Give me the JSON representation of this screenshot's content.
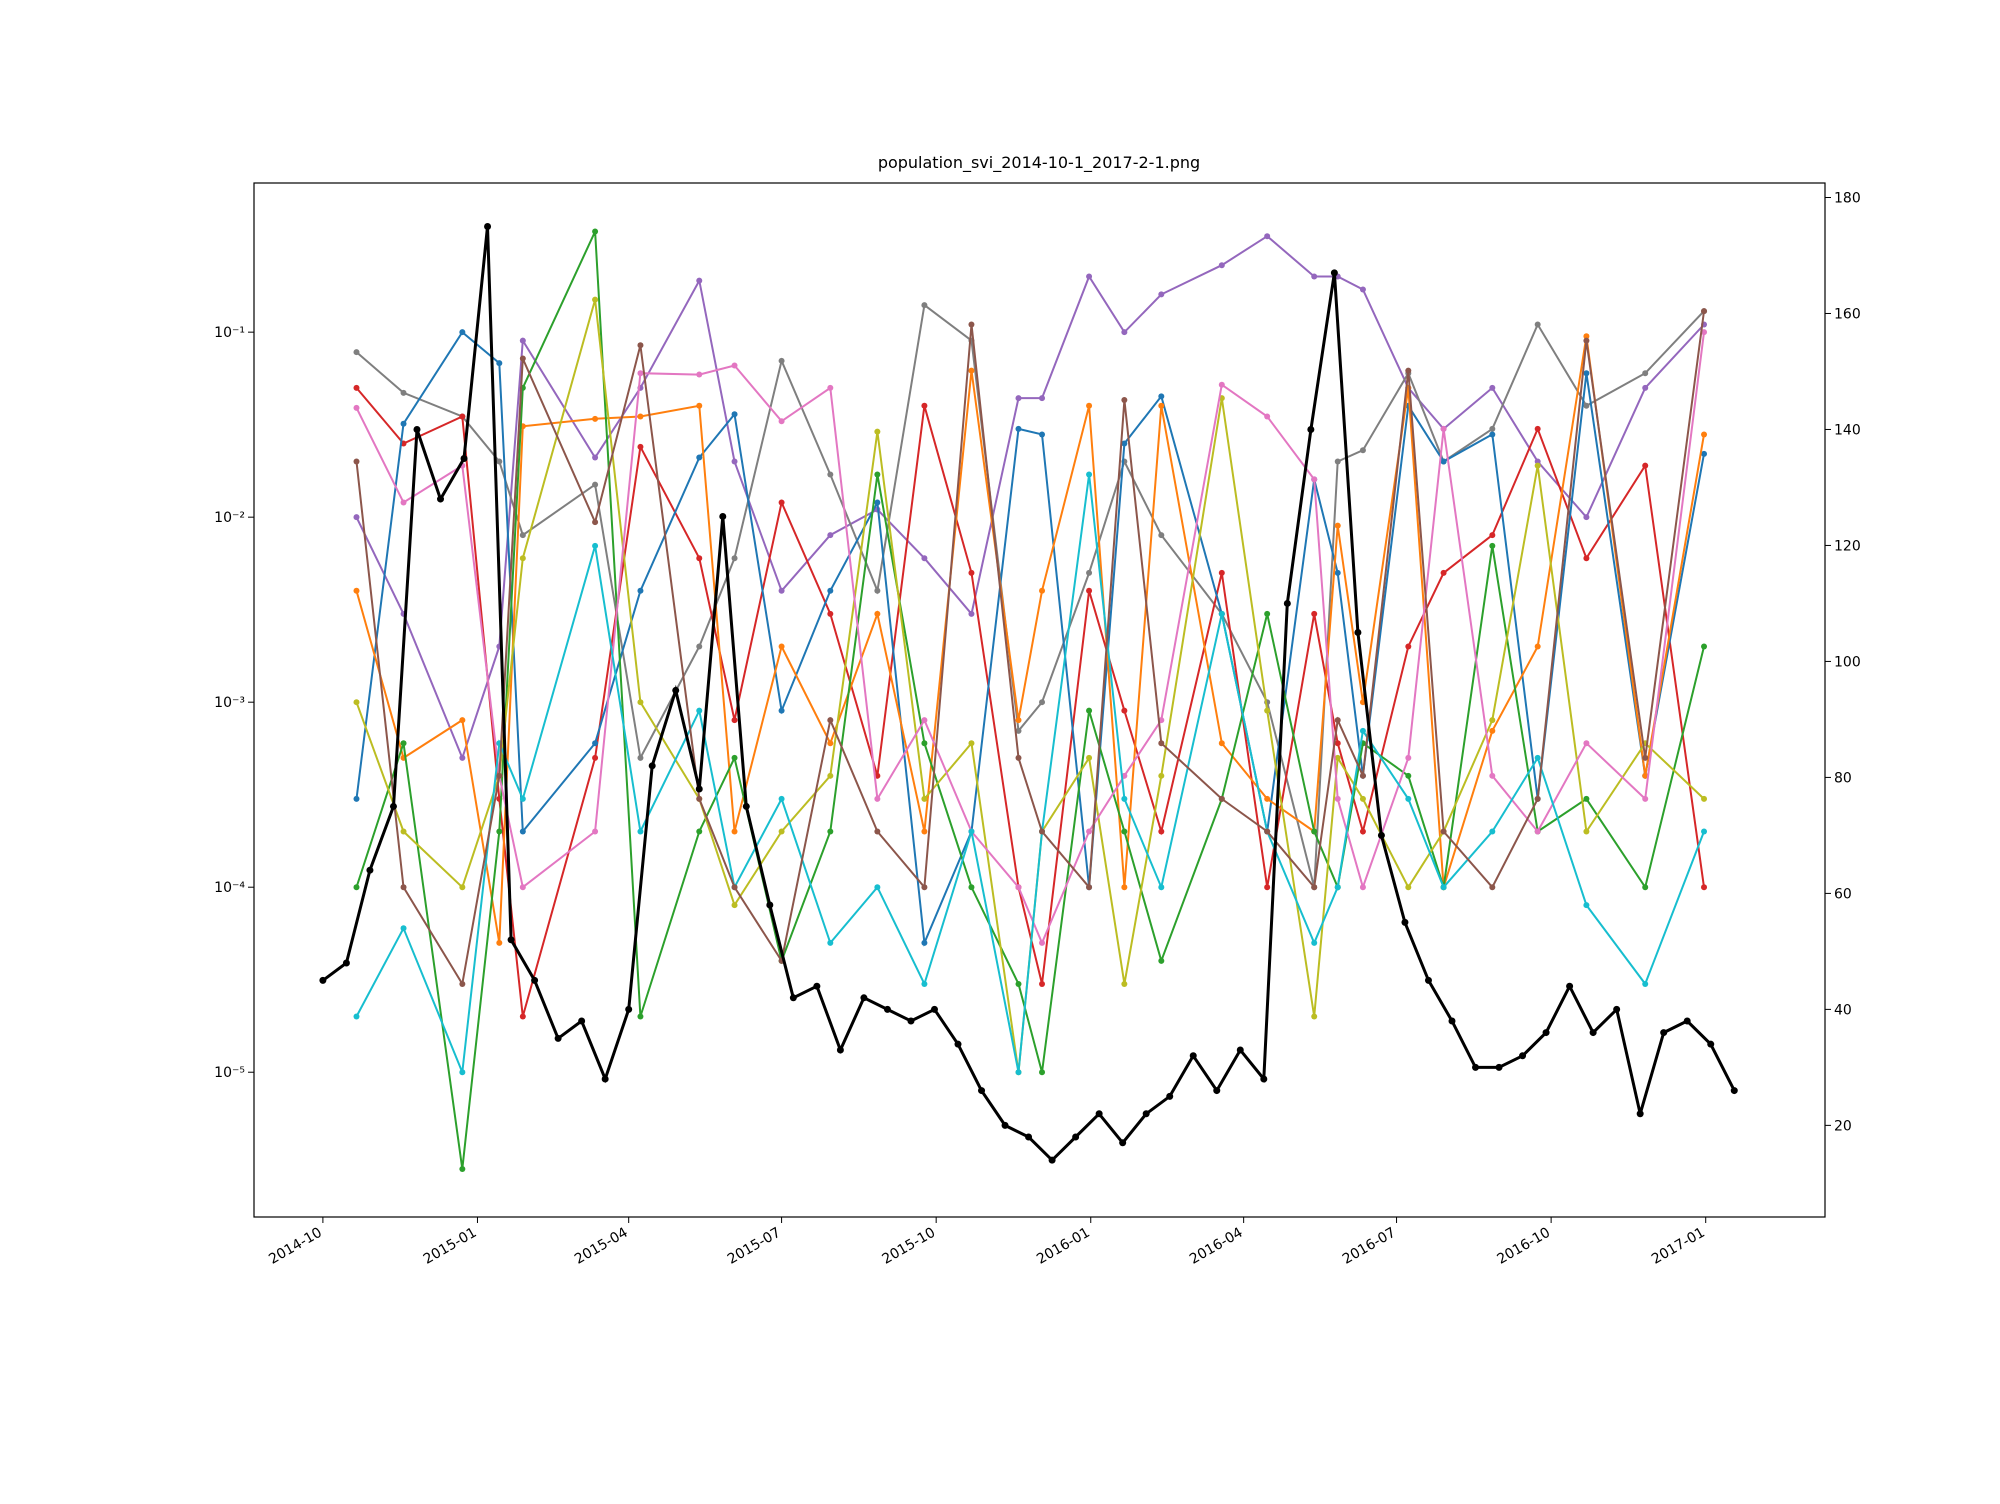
{
  "chart_data": {
    "type": "line",
    "title": "population_svi_2014-10-1_2017-2-1.png",
    "xlim": [
      "2014-08-21",
      "2017-03-13"
    ],
    "xticks": [
      {
        "value": "2014-10-01",
        "label": "2014-10"
      },
      {
        "value": "2015-01-01",
        "label": "2015-01"
      },
      {
        "value": "2015-04-01",
        "label": "2015-04"
      },
      {
        "value": "2015-07-01",
        "label": "2015-07"
      },
      {
        "value": "2015-10-01",
        "label": "2015-10"
      },
      {
        "value": "2016-01-01",
        "label": "2016-01"
      },
      {
        "value": "2016-04-01",
        "label": "2016-04"
      },
      {
        "value": "2016-07-01",
        "label": "2016-07"
      },
      {
        "value": "2016-10-01",
        "label": "2016-10"
      },
      {
        "value": "2017-01-01",
        "label": "2017-01"
      }
    ],
    "ylim": [
      1.65e-06,
      0.64
    ],
    "log_y": true,
    "yticks": [
      {
        "value": 1e-05,
        "label": "10⁻⁵"
      },
      {
        "value": 0.0001,
        "label": "10⁻⁴"
      },
      {
        "value": 0.001,
        "label": "10⁻³"
      },
      {
        "value": 0.01,
        "label": "10⁻²"
      },
      {
        "value": 0.1,
        "label": "10⁻¹"
      }
    ],
    "y2lim": [
      4.2,
      182.5
    ],
    "y2ticks": [
      20,
      40,
      60,
      80,
      100,
      120,
      140,
      160,
      180
    ],
    "x": [
      "2014-10-21",
      "2014-11-18",
      "2014-12-23",
      "2015-01-14",
      "2015-01-28",
      "2015-03-12",
      "2015-04-08",
      "2015-05-13",
      "2015-06-03",
      "2015-07-01",
      "2015-07-30",
      "2015-08-27",
      "2015-09-24",
      "2015-10-22",
      "2015-11-19",
      "2015-12-03",
      "2015-12-31",
      "2016-01-21",
      "2016-02-12",
      "2016-03-19",
      "2016-04-15",
      "2016-05-13",
      "2016-05-27",
      "2016-06-11",
      "2016-07-08",
      "2016-07-29",
      "2016-08-27",
      "2016-09-23",
      "2016-10-22",
      "2016-11-26",
      "2016-12-31"
    ],
    "series": [
      {
        "color": "#9467bd",
        "values": [
          0.01,
          0.003,
          0.0005,
          0.002,
          0.09,
          0.021,
          0.05,
          0.19,
          0.02,
          0.004,
          0.008,
          0.011,
          0.006,
          0.003,
          0.044,
          0.044,
          0.2,
          0.1,
          0.16,
          0.23,
          0.33,
          0.2,
          0.2,
          0.17,
          0.05,
          0.03,
          0.05,
          0.02,
          0.01,
          0.05,
          0.11
        ]
      },
      {
        "color": "#7f7f7f",
        "values": [
          0.078,
          0.047,
          0.035,
          0.02,
          0.008,
          0.015,
          0.0005,
          0.002,
          0.006,
          0.07,
          0.017,
          0.004,
          0.14,
          0.09,
          0.0007,
          0.001,
          0.005,
          0.02,
          0.008,
          0.003,
          0.001,
          0.0001,
          0.02,
          0.023,
          0.06,
          0.02,
          0.03,
          0.11,
          0.04,
          0.06,
          0.13
        ]
      },
      {
        "color": "#d62728",
        "values": [
          0.05,
          0.025,
          0.035,
          0.0003,
          2e-05,
          0.0005,
          0.024,
          0.006,
          0.0008,
          0.012,
          0.003,
          0.0004,
          0.04,
          0.005,
          0.0001,
          3e-05,
          0.004,
          0.0009,
          0.0002,
          0.005,
          0.0001,
          0.003,
          0.0006,
          0.0002,
          0.002,
          0.005,
          0.008,
          0.03,
          0.006,
          0.019,
          0.0001
        ]
      },
      {
        "color": "#1f77b4",
        "values": [
          0.0003,
          0.032,
          0.1,
          0.068,
          0.0002,
          0.0006,
          0.004,
          0.021,
          0.036,
          0.0009,
          0.004,
          0.012,
          5e-05,
          0.0002,
          0.03,
          0.028,
          0.0001,
          0.025,
          0.045,
          0.003,
          0.0002,
          0.016,
          0.005,
          0.0004,
          0.04,
          0.02,
          0.028,
          0.0003,
          0.06,
          0.0004,
          0.022
        ]
      },
      {
        "color": "#ff7f0e",
        "values": [
          0.004,
          0.0005,
          0.0008,
          5e-05,
          0.031,
          0.034,
          0.035,
          0.04,
          0.0002,
          0.002,
          0.0006,
          0.003,
          0.0002,
          0.062,
          0.0008,
          0.004,
          0.04,
          0.0001,
          0.04,
          0.0006,
          0.0003,
          0.0002,
          0.009,
          0.001,
          0.05,
          0.0001,
          0.0007,
          0.002,
          0.095,
          0.0004,
          0.028
        ]
      },
      {
        "color": "#2ca02c",
        "values": [
          0.0001,
          0.0006,
          3e-06,
          0.0002,
          0.05,
          0.35,
          2e-05,
          0.0002,
          0.0005,
          4e-05,
          0.0002,
          0.017,
          0.0006,
          0.0001,
          3e-05,
          1e-05,
          0.0009,
          0.0002,
          4e-05,
          0.0003,
          0.003,
          0.0002,
          0.0001,
          0.0006,
          0.0004,
          0.0001,
          0.007,
          0.0002,
          0.0003,
          0.0001,
          0.002
        ]
      },
      {
        "color": "#bcbd22",
        "values": [
          0.001,
          0.0002,
          0.0001,
          0.0004,
          0.006,
          0.15,
          0.001,
          0.0003,
          8e-05,
          0.0002,
          0.0004,
          0.029,
          0.0003,
          0.0006,
          1e-05,
          0.0002,
          0.0005,
          3e-05,
          0.0004,
          0.044,
          0.0009,
          2e-05,
          0.0005,
          0.0003,
          0.0001,
          0.0002,
          0.0008,
          0.019,
          0.0002,
          0.0006,
          0.0003
        ]
      },
      {
        "color": "#e377c2",
        "values": [
          0.039,
          0.012,
          0.019,
          0.0004,
          0.0001,
          0.0002,
          0.06,
          0.059,
          0.066,
          0.033,
          0.05,
          0.0003,
          0.0008,
          0.0002,
          0.0001,
          5e-05,
          0.0002,
          0.0004,
          0.0008,
          0.052,
          0.035,
          0.016,
          0.0003,
          0.0001,
          0.0005,
          0.03,
          0.0004,
          0.0002,
          0.0006,
          0.0003,
          0.1
        ]
      },
      {
        "color": "#17becf",
        "values": [
          2e-05,
          6e-05,
          1e-05,
          0.0006,
          0.0003,
          0.007,
          0.0002,
          0.0009,
          0.0001,
          0.0003,
          5e-05,
          0.0001,
          3e-05,
          0.0002,
          1e-05,
          0.0002,
          0.017,
          0.0003,
          0.0001,
          0.003,
          0.0002,
          5e-05,
          0.0001,
          0.0007,
          0.0003,
          0.0001,
          0.0002,
          0.0005,
          8e-05,
          3e-05,
          0.0002
        ]
      },
      {
        "color": "#8c564b",
        "values": [
          0.02,
          0.0001,
          3e-05,
          0.0004,
          0.072,
          0.0094,
          0.085,
          0.0003,
          0.0001,
          4e-05,
          0.0008,
          0.0002,
          0.0001,
          0.11,
          0.0005,
          0.0002,
          0.0001,
          0.043,
          0.0006,
          0.0003,
          0.0002,
          0.0001,
          0.0008,
          0.0004,
          0.062,
          0.0002,
          0.0001,
          0.0003,
          0.09,
          0.0005,
          0.13
        ]
      },
      {
        "color": "#000000",
        "axis": "y2",
        "x": [
          "2014-10-01",
          "2014-10-15",
          "2014-10-29",
          "2014-11-12",
          "2014-11-26",
          "2014-12-10",
          "2014-12-24",
          "2015-01-07",
          "2015-01-21",
          "2015-02-04",
          "2015-02-18",
          "2015-03-04",
          "2015-03-18",
          "2015-04-01",
          "2015-04-15",
          "2015-04-29",
          "2015-05-13",
          "2015-05-27",
          "2015-06-10",
          "2015-06-24",
          "2015-07-08",
          "2015-07-22",
          "2015-08-05",
          "2015-08-19",
          "2015-09-02",
          "2015-09-16",
          "2015-09-30",
          "2015-10-14",
          "2015-10-28",
          "2015-11-11",
          "2015-11-25",
          "2015-12-09",
          "2015-12-23",
          "2016-01-06",
          "2016-01-20",
          "2016-02-03",
          "2016-02-17",
          "2016-03-02",
          "2016-03-16",
          "2016-03-30",
          "2016-04-13",
          "2016-04-27",
          "2016-05-11",
          "2016-05-25",
          "2016-06-08",
          "2016-06-22",
          "2016-07-06",
          "2016-07-20",
          "2016-08-03",
          "2016-08-17",
          "2016-08-31",
          "2016-09-14",
          "2016-09-28",
          "2016-10-12",
          "2016-10-26",
          "2016-11-09",
          "2016-11-23",
          "2016-12-07",
          "2016-12-21",
          "2017-01-04",
          "2017-01-18"
        ],
        "values": [
          45,
          48,
          64,
          75,
          140,
          128,
          135,
          175,
          52,
          45,
          35,
          38,
          28,
          40,
          82,
          95,
          78,
          125,
          75,
          58,
          42,
          44,
          33,
          42,
          40,
          38,
          40,
          34,
          26,
          20,
          18,
          14,
          18,
          22,
          17,
          22,
          25,
          32,
          26,
          33,
          28,
          110,
          140,
          167,
          105,
          70,
          55,
          45,
          38,
          30,
          30,
          32,
          36,
          44,
          36,
          40,
          22,
          36,
          38,
          34,
          26
        ]
      }
    ]
  }
}
